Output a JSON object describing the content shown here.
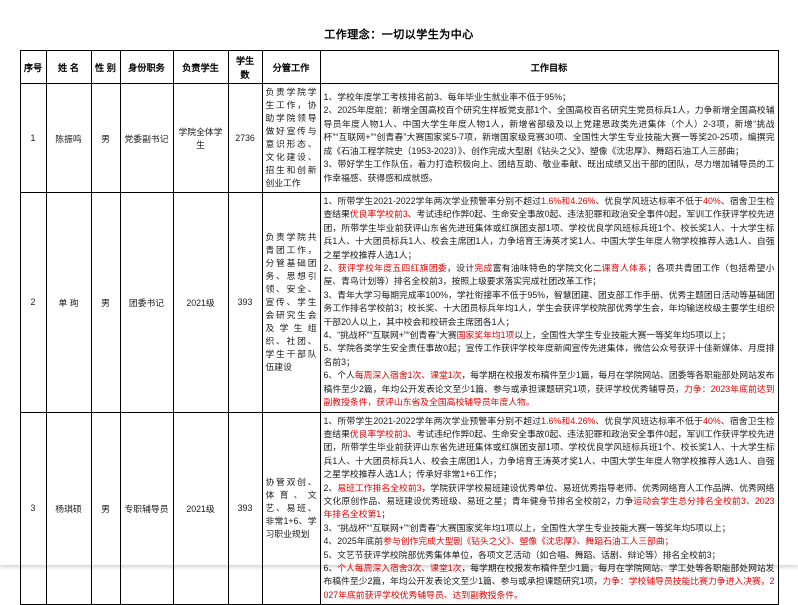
{
  "colors": {
    "red": "#e60000",
    "ink": "#1a1a1a"
  },
  "page": {
    "title": "工作理念：一切以学生为中心"
  },
  "table": {
    "columns": [
      "序号",
      "姓 名",
      "性 别",
      "身份职务",
      "负责学生",
      "学生数",
      "分管工作",
      "工作目标"
    ],
    "rows": [
      {
        "no": "1",
        "name": "陈振鸣",
        "gender": "男",
        "position": "党委副书记",
        "students": "学院全体学生",
        "count": "2736",
        "duties": "负责学院学生工作，协助学院领导做好宣传与意识形态、文化建设、招生和创新创业工作",
        "goals": [
          {
            "t": "1、学校年度学工考核排名前3、每年毕业生就业率不低于95%；\n2、2025年度前：新增全国高校百个研究生样板党支部1个、全国高校百名研究生党员标兵1人，力争新增全国高校辅导员年度人物1人、中国大学生年度人物1人，新增省部级及以上党建思政类先进集体（个人）2-3项，新增“挑战杯”“互联网+”“创青春”大赛国家奖5-7项，新增国家级竞赛30项、全国性大学生专业技能大赛一等奖20-25项，编撰完成《石油工程学院史（1953-2023）》、创作完成大型剧《钻头之父》、塑像《沈忠厚》、舞蹈石油工人三部曲；\n3、带好学生工作队伍，着力打造积极向上、团结互助、敬业奉献、既出成绩又出干部的团队，尽力增加辅导员的工作幸福感、获得感和成就感。"
          }
        ]
      },
      {
        "no": "2",
        "name": "单 珣",
        "gender": "男",
        "position": "团委书记",
        "students": "2021级",
        "count": "393",
        "duties": "负责学院共青团工作，分管基础团务、思想引领、安全、宣传、学生会研究生会及学生组织、社团、学生干部队伍建设",
        "goals": [
          {
            "t": "1、所带学生2021-2022学年两次学业预警率分别不超过"
          },
          {
            "t": "1.6%和4.26%",
            "c": "red"
          },
          {
            "t": "、优良学风班达标率不低于"
          },
          {
            "t": "40%",
            "c": "red"
          },
          {
            "t": "、宿舍卫生检查结果",
            "c": ""
          },
          {
            "t": "优良率学校前3",
            "c": "red"
          },
          {
            "t": "、考试违纪作弊0起、生命安全事故0起、违法犯罪和政治安全事件0起，军训工作获评学校先进团，所带学生毕业前获评山东省先进班集体或红旗团支部1项、学校优良学风班标兵班1个、校长奖1人、十大学生标兵1人、十大团员标兵1人、校会主席团1人，力争培育王涛英才奖1人、中国大学生年度人物学校推荐人选1人、自强之星学校推荐人选1人；\n2、"
          },
          {
            "t": "获评学校年度五四红旗团委",
            "c": "red"
          },
          {
            "t": "，设计"
          },
          {
            "t": "完成",
            "c": "red"
          },
          {
            "t": "富有油味特色的学院文化"
          },
          {
            "t": "二课育人体系",
            "c": "red"
          },
          {
            "t": "；各项共青团工作（包括希望小屋、青鸟计划等）排名全校前3，按照上级要求落实完成社团改革工作；\n3、青年大学习每期完成率100%，学社衔接率不低于95%，智慧团建、团支部工作手册、优秀主题团日活动等基础团务工作排名学校前3；校长奖、十大团员标兵年均1人，学生会获评学校院部优秀学生会，年均输送校级主要学生组织干部20人以上，其中校会和校研会主席团各1人；\n4、“挑战杯”“互联网+”“创青春”大赛"
          },
          {
            "t": "国家奖年均1项",
            "c": "red"
          },
          {
            "t": "以上，全国性大学生专业技能大赛一等奖年均5项以上；\n5、学院各类学生安全责任事故0起；宣传工作获评学校年度新闻宣传先进集体，微信公众号获评十佳新媒体、月度排名前3；\n6、个人"
          },
          {
            "t": "每周深入宿舍1次、课堂1次",
            "c": "red"
          },
          {
            "t": "，每学期在校报发布稿件至少1篇，每月在学院网站、团委等各职能部处网站发布稿件至少2篇，年均公开发表论文至少1篇、参与或承担课题研究1项，获评学校优秀辅导员，"
          },
          {
            "t": "力争：2023年底前达到副教授条件，获评山东省及全国高校辅导员年度人物。",
            "c": "red"
          }
        ]
      },
      {
        "no": "3",
        "name": "杨琪硕",
        "gender": "男",
        "position": "专职辅导员",
        "students": "2021级",
        "count": "393",
        "duties": "协管双创、体育、文艺、易班、非常1+6、学习职业规划",
        "goals": [
          {
            "t": "1、所带学生2021-2022学年两次学业预警率分别不超过"
          },
          {
            "t": "1.6%和4.26%",
            "c": "red"
          },
          {
            "t": "、优良学风班达标率不低于"
          },
          {
            "t": "40%",
            "c": "red"
          },
          {
            "t": "、宿舍卫生检查结果",
            "c": ""
          },
          {
            "t": "优良率学校前3",
            "c": "red"
          },
          {
            "t": "、考试违纪作弊0起、生命安全事故0起、违法犯罪和政治安全事件0起，军训工作获评学校先进团，所带学生毕业前获评山东省先进班集体或红旗团支部1项、学校优良学风班标兵班1个、校长奖1人、十大学生标兵1人、十大团员标兵1人、校会主席团1人，力争培育王涛英才奖1人、中国大学生年度人物学校推荐人选1人、自强之星学校推荐人选1人；传承好非常1+6工作；\n2、"
          },
          {
            "t": "易班工作排名全校前3",
            "c": "red"
          },
          {
            "t": "，学院获评学校易班建设优秀单位、易班优秀指导老师、优秀网络育人工作品牌、优秀网络文化原创作品、易班建设优秀班级、易班之星；青年健身节排名全校前2，力争"
          },
          {
            "t": "运动会学生总分排名全校前3、2023年排名全校第1",
            "c": "red"
          },
          {
            "t": "；\n3、“挑战杯”“互联网+”“创青春”大赛国家奖年均1项以上，全国性大学生专业技能大赛一等奖年均5项以上；\n4、2025年底前"
          },
          {
            "t": "参与创作完成大型剧《钻头之父》、塑像《沈忠厚》、舞蹈石油工人三部曲；",
            "c": "red"
          },
          {
            "t": "\n5、文艺节获评学校院部优秀集体单位，各项文艺活动（如合唱、舞蹈、话剧、辩论等）排名全校前3；\n6、"
          },
          {
            "t": "个人每周深入宿舍3次、课堂1次",
            "c": "red"
          },
          {
            "t": "，每学期在校报发布稿件至少1篇，每月在学院网站、学工处等各职能部处网站发布稿件至少2篇，年均公开发表论文至少1篇、参与或承担课题研究1项，"
          },
          {
            "t": "力争：学校辅导员技能比赛力争进入决赛，2027年底前获评学校优秀辅导员、达到副教授条件。",
            "c": "red"
          }
        ]
      }
    ]
  }
}
